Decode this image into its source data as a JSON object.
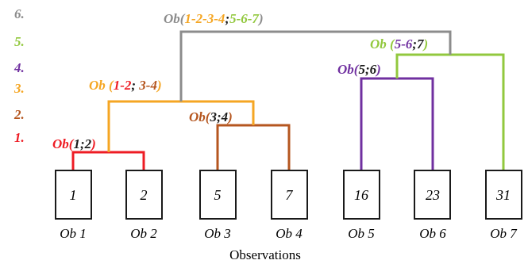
{
  "colors": {
    "black": "#1a1a1a",
    "red": "#ee1c24",
    "orange": "#f5a623",
    "brown": "#b5561f",
    "purple": "#7030a0",
    "green": "#92c83e",
    "gray": "#8c8c8c"
  },
  "levels": [
    {
      "label": "6.",
      "color": "#8c8c8c"
    },
    {
      "label": "5.",
      "color": "#92c83e"
    },
    {
      "label": "4.",
      "color": "#7030a0"
    },
    {
      "label": "3.",
      "color": "#f5a623"
    },
    {
      "label": "2.",
      "color": "#b5561f"
    },
    {
      "label": "1.",
      "color": "#ee1c24"
    }
  ],
  "merges": {
    "m1": {
      "segments": [
        {
          "t": "Ob(",
          "c": "#ee1c24"
        },
        {
          "t": "1;2",
          "c": "#1a1a1a"
        },
        {
          "t": ")",
          "c": "#ee1c24"
        }
      ]
    },
    "m2": {
      "segments": [
        {
          "t": "Ob(",
          "c": "#b5561f"
        },
        {
          "t": "3;4",
          "c": "#1a1a1a"
        },
        {
          "t": ")",
          "c": "#b5561f"
        }
      ]
    },
    "m3": {
      "segments": [
        {
          "t": "Ob (",
          "c": "#f5a623"
        },
        {
          "t": "1-2",
          "c": "#ee1c24"
        },
        {
          "t": "; ",
          "c": "#1a1a1a"
        },
        {
          "t": "3-4",
          "c": "#b5561f"
        },
        {
          "t": ")",
          "c": "#f5a623"
        }
      ]
    },
    "m4": {
      "segments": [
        {
          "t": "Ob(",
          "c": "#7030a0"
        },
        {
          "t": "5;6",
          "c": "#1a1a1a"
        },
        {
          "t": ")",
          "c": "#7030a0"
        }
      ]
    },
    "m5": {
      "segments": [
        {
          "t": "Ob (",
          "c": "#92c83e"
        },
        {
          "t": "5-6",
          "c": "#7030a0"
        },
        {
          "t": ";",
          "c": "#1a1a1a"
        },
        {
          "t": "7",
          "c": "#1a1a1a"
        },
        {
          "t": ")",
          "c": "#92c83e"
        }
      ]
    },
    "m6": {
      "segments": [
        {
          "t": "Ob(",
          "c": "#8c8c8c"
        },
        {
          "t": "1-2-3-4",
          "c": "#f5a623"
        },
        {
          "t": ";",
          "c": "#1a1a1a"
        },
        {
          "t": "5-6-7",
          "c": "#92c83e"
        },
        {
          "t": ")",
          "c": "#8c8c8c"
        }
      ]
    }
  },
  "observations": [
    {
      "value": "1",
      "label": "Ob 1"
    },
    {
      "value": "2",
      "label": "Ob 2"
    },
    {
      "value": "5",
      "label": "Ob 3"
    },
    {
      "value": "7",
      "label": "Ob 4"
    },
    {
      "value": "16",
      "label": "Ob 5"
    },
    {
      "value": "23",
      "label": "Ob 6"
    },
    {
      "value": "31",
      "label": "Ob 7"
    }
  ],
  "axis_label": "Observations"
}
